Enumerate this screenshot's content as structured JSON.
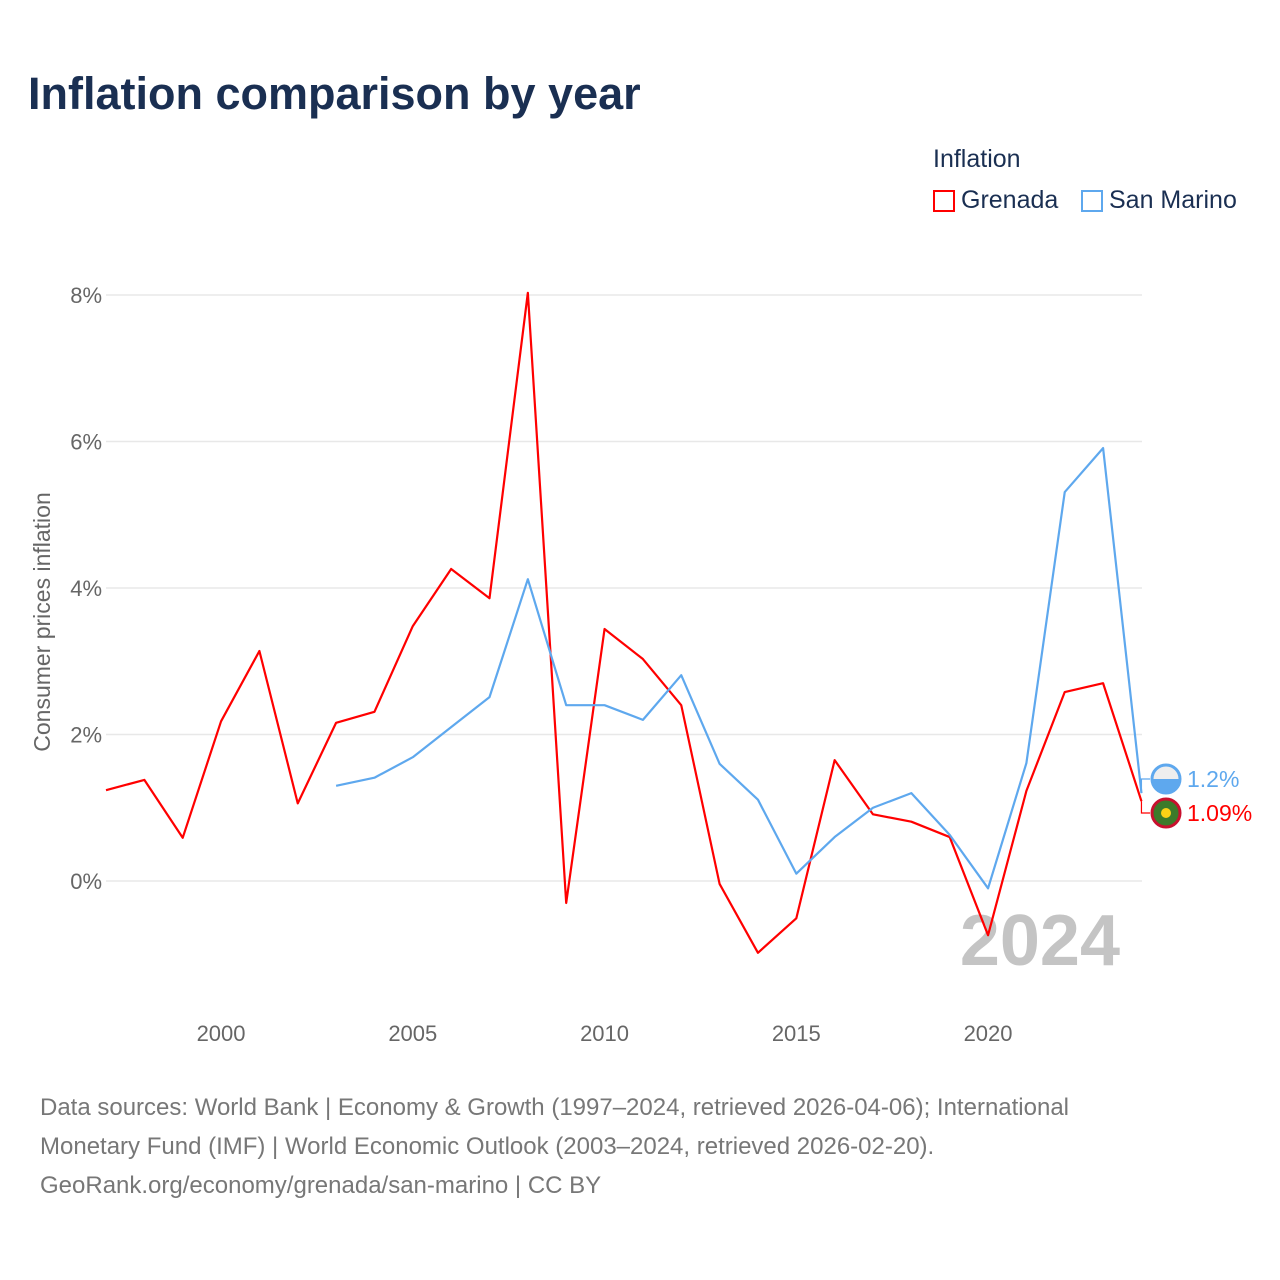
{
  "title": "Inflation comparison by year",
  "footer": {
    "line1": "Data sources: World Bank | Economy & Growth (1997–2024, retrieved 2026-04-06); International",
    "line2": "Monetary Fund (IMF) | World Economic Outlook (2003–2024, retrieved 2026-02-20).",
    "line3": "GeoRank.org/economy/grenada/san-marino | CC BY"
  },
  "chart_data": {
    "type": "line",
    "title": "Inflation comparison by year",
    "ylabel": "Consumer prices inflation",
    "xlabel": "",
    "legend_title": "Inflation",
    "legend_position": "top-right",
    "watermark_year": "2024",
    "ylim": [
      -1.5,
      8.5
    ],
    "xlim": [
      1997,
      2024
    ],
    "yticks": [
      {
        "v": 0,
        "label": "0%"
      },
      {
        "v": 2,
        "label": "2%"
      },
      {
        "v": 4,
        "label": "4%"
      },
      {
        "v": 6,
        "label": "6%"
      },
      {
        "v": 8,
        "label": "8%"
      }
    ],
    "xticks": [
      {
        "v": 2000,
        "label": "2000"
      },
      {
        "v": 2005,
        "label": "2005"
      },
      {
        "v": 2010,
        "label": "2010"
      },
      {
        "v": 2015,
        "label": "2015"
      },
      {
        "v": 2020,
        "label": "2020"
      }
    ],
    "grid": true,
    "series": [
      {
        "name": "Grenada",
        "color": "#ff0000",
        "end_label": "1.09%",
        "x": [
          1997,
          1998,
          1999,
          2000,
          2001,
          2002,
          2003,
          2004,
          2005,
          2006,
          2007,
          2008,
          2009,
          2010,
          2011,
          2012,
          2013,
          2014,
          2015,
          2016,
          2017,
          2018,
          2019,
          2020,
          2021,
          2022,
          2023,
          2024
        ],
        "values": [
          1.24,
          1.38,
          0.59,
          2.18,
          3.14,
          1.06,
          2.16,
          2.31,
          3.48,
          4.26,
          3.86,
          8.03,
          -0.3,
          3.44,
          3.03,
          2.4,
          -0.04,
          -0.98,
          -0.51,
          1.65,
          0.91,
          0.81,
          0.6,
          -0.74,
          1.23,
          2.58,
          2.7,
          1.09
        ]
      },
      {
        "name": "San Marino",
        "color": "#5ea8ee",
        "end_label": "1.2%",
        "x": [
          2003,
          2004,
          2005,
          2006,
          2007,
          2008,
          2009,
          2010,
          2011,
          2012,
          2013,
          2014,
          2015,
          2016,
          2017,
          2018,
          2019,
          2020,
          2021,
          2022,
          2023,
          2024
        ],
        "values": [
          1.3,
          1.41,
          1.69,
          2.1,
          2.51,
          4.12,
          2.4,
          2.4,
          2.2,
          2.81,
          1.6,
          1.11,
          0.1,
          0.6,
          1.0,
          1.2,
          0.63,
          -0.1,
          1.61,
          5.31,
          5.91,
          1.2
        ]
      }
    ]
  }
}
